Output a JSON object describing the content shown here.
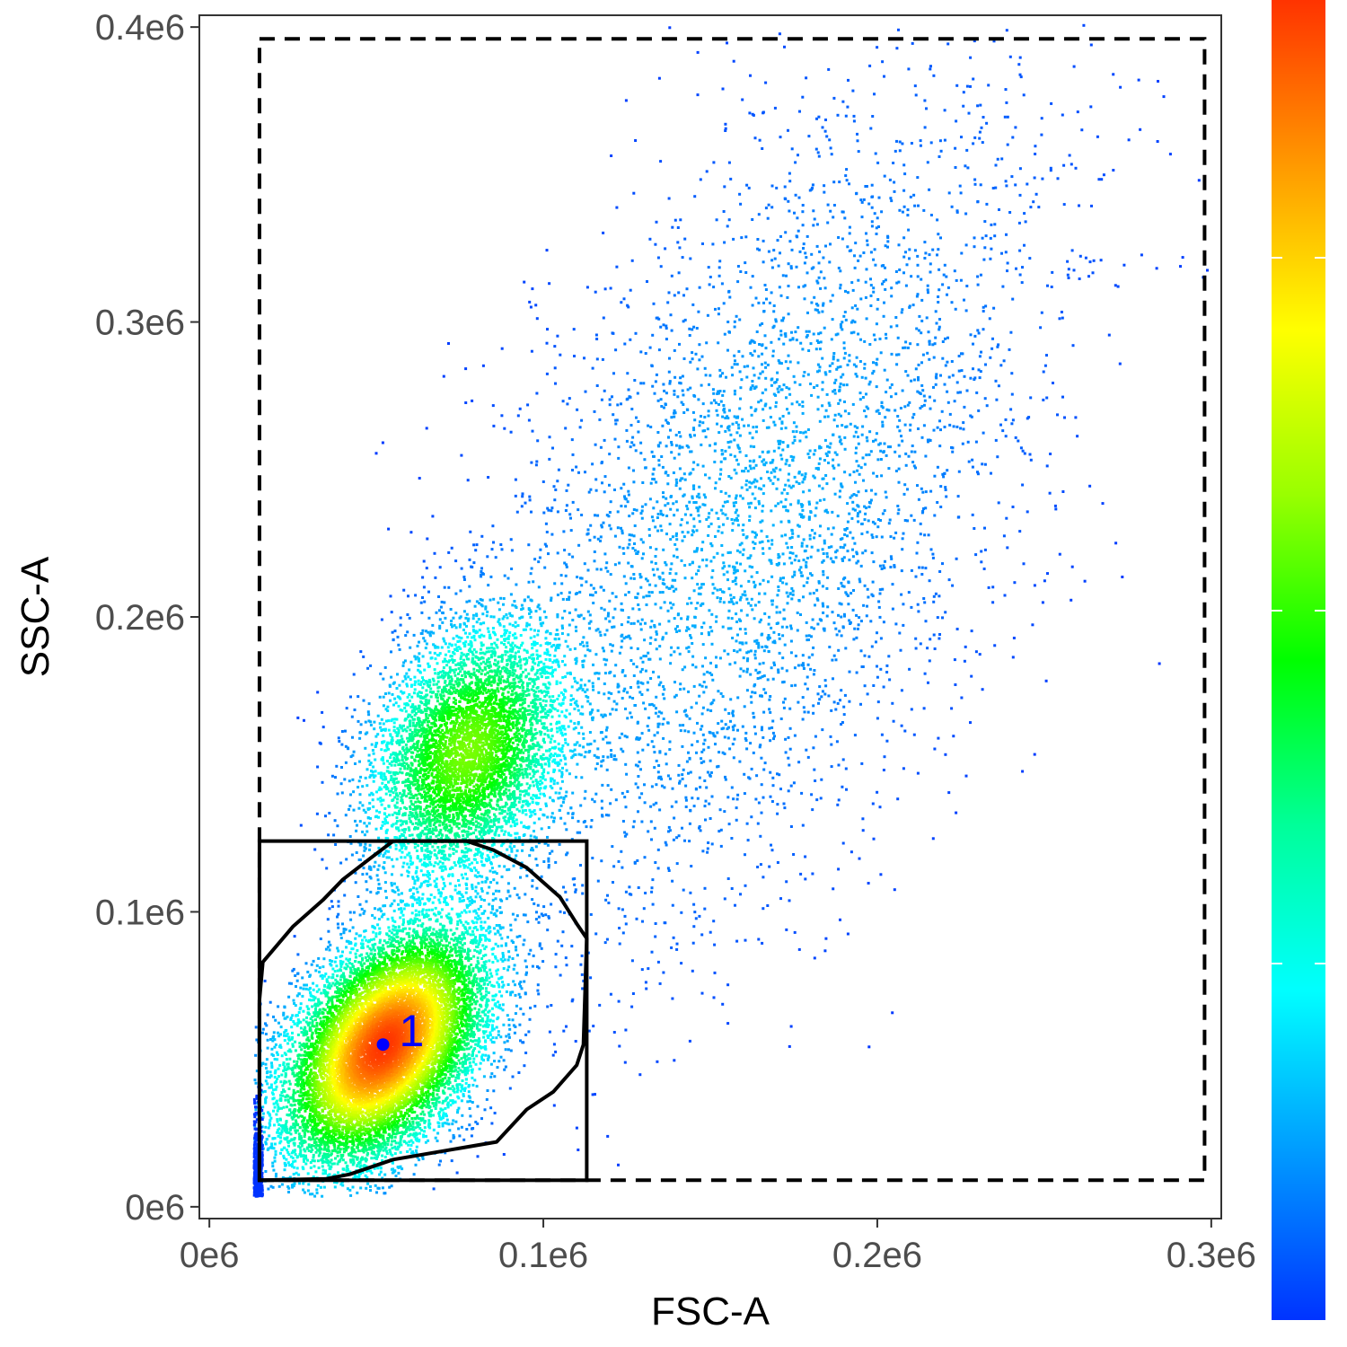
{
  "chart_data": {
    "type": "scatter",
    "subtype": "flow-cytometry density plot",
    "xlabel": "FSC-A",
    "ylabel": "SSC-A",
    "xlim": [
      -3000,
      303000
    ],
    "ylim": [
      -4000,
      404000
    ],
    "x_ticks": [
      {
        "value": 0,
        "label": "0e6"
      },
      {
        "value": 100000,
        "label": "0.1e6"
      },
      {
        "value": 200000,
        "label": "0.2e6"
      },
      {
        "value": 300000,
        "label": "0.3e6"
      }
    ],
    "y_ticks": [
      {
        "value": 0,
        "label": "0e6"
      },
      {
        "value": 100000,
        "label": "0.1e6"
      },
      {
        "value": 200000,
        "label": "0.2e6"
      },
      {
        "value": 300000,
        "label": "0.3e6"
      },
      {
        "value": 400000,
        "label": "0.4e6"
      }
    ],
    "grid": false,
    "density_colorbar": {
      "placement": "right",
      "labels_shown": false,
      "colors_bottom_to_top": [
        "#0033ff",
        "#0099ff",
        "#00ffff",
        "#00ff99",
        "#00ff00",
        "#99ff00",
        "#ffff00",
        "#ff9900",
        "#ff3300"
      ]
    },
    "populations": [
      {
        "center": [
          52000,
          55000
        ],
        "sd": [
          15000,
          20000
        ],
        "rho": 0.45,
        "weight": 0.55,
        "dot_color": "density"
      },
      {
        "center": [
          77000,
          155000
        ],
        "sd": [
          15000,
          22000
        ],
        "rho": 0.3,
        "weight": 0.25,
        "dot_color": "density"
      },
      {
        "center": [
          160000,
          230000
        ],
        "sd": [
          45000,
          75000
        ],
        "rho": 0.55,
        "weight": 0.2,
        "dot_color": "density"
      }
    ],
    "gates": [
      {
        "name": "outer-gate",
        "shape": "rectangle",
        "style": "dashed",
        "x": [
          15000,
          298000
        ],
        "y": [
          9000,
          396000
        ]
      },
      {
        "name": "inner-gate",
        "shape": "rectangle",
        "style": "solid",
        "x": [
          15000,
          113000
        ],
        "y": [
          9000,
          124000
        ]
      },
      {
        "name": "polygon-gate",
        "shape": "polygon",
        "style": "solid",
        "points": [
          [
            15000,
            9000
          ],
          [
            15000,
            70000
          ],
          [
            16000,
            83000
          ],
          [
            25000,
            95000
          ],
          [
            34000,
            104000
          ],
          [
            40000,
            111000
          ],
          [
            48000,
            118000
          ],
          [
            55000,
            124000
          ],
          [
            77000,
            124000
          ],
          [
            85000,
            121000
          ],
          [
            95000,
            115000
          ],
          [
            105000,
            105000
          ],
          [
            110000,
            96000
          ],
          [
            113000,
            91000
          ],
          [
            112000,
            55000
          ],
          [
            110000,
            48000
          ],
          [
            103000,
            39000
          ],
          [
            95000,
            33000
          ],
          [
            86000,
            22000
          ],
          [
            55000,
            16000
          ],
          [
            42000,
            11000
          ],
          [
            35000,
            9500
          ],
          [
            15000,
            9000
          ]
        ]
      }
    ],
    "centroid": {
      "x": 52000,
      "y": 55000,
      "label": "1",
      "color": "#0000ff"
    }
  }
}
